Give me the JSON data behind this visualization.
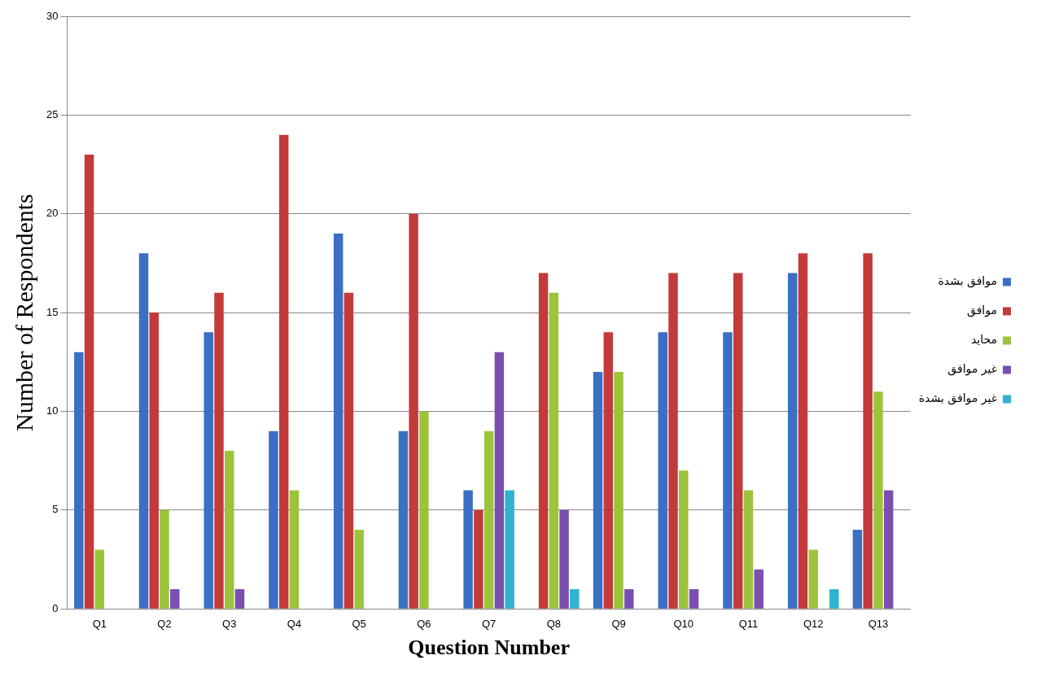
{
  "chart_data": {
    "type": "bar",
    "xlabel": "Question Number",
    "ylabel": "Number of Respondents",
    "categories": [
      "Q1",
      "Q2",
      "Q3",
      "Q4",
      "Q5",
      "Q6",
      "Q7",
      "Q8",
      "Q9",
      "Q10",
      "Q11",
      "Q12",
      "Q13"
    ],
    "series": [
      {
        "name": "موافق بشدة",
        "color": "#3a6fc4",
        "values": [
          13,
          18,
          14,
          9,
          19,
          9,
          6,
          0,
          12,
          14,
          14,
          17,
          4
        ]
      },
      {
        "name": "موافق",
        "color": "#c43a3a",
        "values": [
          23,
          15,
          16,
          24,
          16,
          20,
          5,
          17,
          14,
          17,
          17,
          18,
          18
        ]
      },
      {
        "name": "محايد",
        "color": "#9bc43a",
        "values": [
          3,
          5,
          8,
          6,
          4,
          10,
          9,
          16,
          12,
          7,
          6,
          3,
          11
        ]
      },
      {
        "name": "غير موافق",
        "color": "#7a4fb0",
        "values": [
          0,
          1,
          1,
          0,
          0,
          0,
          13,
          5,
          1,
          1,
          2,
          0,
          6
        ]
      },
      {
        "name": "غير موافق بشدة",
        "color": "#2fb3cf",
        "values": [
          0,
          0,
          0,
          0,
          0,
          0,
          6,
          1,
          0,
          0,
          0,
          1,
          0
        ]
      }
    ],
    "ylim": [
      0,
      30
    ],
    "yticks": [
      0,
      5,
      10,
      15,
      20,
      25,
      30
    ],
    "grid": "y",
    "legend": "right"
  }
}
